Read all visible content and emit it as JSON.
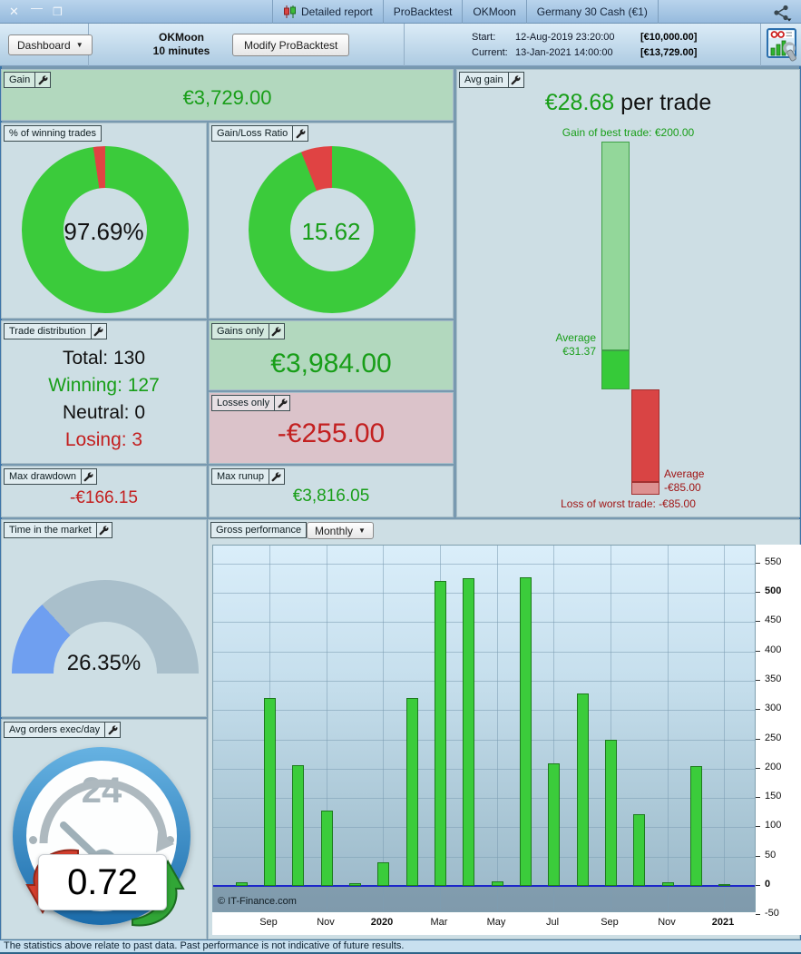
{
  "titlebar": {
    "tabs": [
      "Detailed report",
      "ProBacktest",
      "OKMoon",
      "Germany 30 Cash (€1)"
    ]
  },
  "toolbar": {
    "dashboard_label": "Dashboard",
    "strategy_name": "OKMoon",
    "strategy_timeframe": "10 minutes",
    "modify_button": "Modify ProBacktest",
    "start": {
      "label": "Start:",
      "datetime": "12-Aug-2019 23:20:00",
      "amount": "[€10,000.00]"
    },
    "current": {
      "label": "Current:",
      "datetime": "13-Jan-2021 14:00:00",
      "amount": "[€13,729.00]"
    }
  },
  "panels": {
    "gain": {
      "label": "Gain",
      "value": "€3,729.00"
    },
    "winning_trades": {
      "label": "% of winning trades",
      "value": "97.69%",
      "percent": 97.69,
      "colors": {
        "win": "#3bcb3b",
        "loss": "#e04343"
      }
    },
    "gain_loss_ratio": {
      "label": "Gain/Loss Ratio",
      "value": "15.62",
      "ratio": 15.62
    },
    "avg_gain": {
      "label": "Avg gain",
      "headline_value": "€28.68",
      "headline_suffix": " per trade",
      "best_trade_label": "Gain of best trade: €200.00",
      "avg_win_label_line1": "Average",
      "avg_win_label_line2": "€31.37",
      "avg_loss_label_line1": "Average",
      "avg_loss_label_line2": "-€85.00",
      "worst_trade_label": "Loss of worst trade: -€85.00",
      "stats": {
        "best": 200,
        "average_gain": 31.37,
        "average_loss": -85,
        "worst": -85
      }
    },
    "trade_distribution": {
      "label": "Trade distribution",
      "rows": [
        {
          "text": "Total: 130",
          "color": "k"
        },
        {
          "text": "Winning: 127",
          "color": "g"
        },
        {
          "text": "Neutral: 0",
          "color": "k"
        },
        {
          "text": "Losing: 3",
          "color": "r"
        }
      ]
    },
    "gains_only": {
      "label": "Gains only",
      "value": "€3,984.00"
    },
    "losses_only": {
      "label": "Losses only",
      "value": "-€255.00"
    },
    "max_drawdown": {
      "label": "Max drawdown",
      "value": "-€166.15"
    },
    "max_runup": {
      "label": "Max runup",
      "value": "€3,816.05"
    },
    "time_in_market": {
      "label": "Time in the market",
      "value": "26.35%",
      "percent": 26.35,
      "colors": {
        "fill": "#6f9ff0",
        "rest": "#a9bfcb"
      }
    },
    "avg_orders": {
      "label": "Avg orders exec/day",
      "value": "0.72",
      "dial_text": "24"
    },
    "gross_performance": {
      "label": "Gross performance",
      "period_selector": "Monthly"
    }
  },
  "chart_data": {
    "type": "bar",
    "title": "Gross performance (Monthly)",
    "ylabel": "",
    "xlabel": "",
    "categories": [
      "Aug 2019",
      "Sep 2019",
      "Oct 2019",
      "Nov 2019",
      "Dec 2019",
      "Jan 2020",
      "Feb 2020",
      "Mar 2020",
      "Apr 2020",
      "May 2020",
      "Jun 2020",
      "Jul 2020",
      "Aug 2020",
      "Sep 2020",
      "Oct 2020",
      "Nov 2020",
      "Dec 2020",
      "Jan 2021"
    ],
    "values": [
      6,
      320,
      206,
      129,
      5,
      41,
      321,
      520,
      525,
      8,
      526,
      209,
      328,
      249,
      122,
      6,
      205,
      2
    ],
    "x_tick_labels": [
      {
        "index": 1,
        "label": "Sep",
        "bold": false
      },
      {
        "index": 3,
        "label": "Nov",
        "bold": false
      },
      {
        "index": 5,
        "label": "2020",
        "bold": true
      },
      {
        "index": 7,
        "label": "Mar",
        "bold": false
      },
      {
        "index": 9,
        "label": "May",
        "bold": false
      },
      {
        "index": 11,
        "label": "Jul",
        "bold": false
      },
      {
        "index": 13,
        "label": "Sep",
        "bold": false
      },
      {
        "index": 15,
        "label": "Nov",
        "bold": false
      },
      {
        "index": 17,
        "label": "2021",
        "bold": true
      }
    ],
    "y_ticks": [
      -50,
      0,
      50,
      100,
      150,
      200,
      250,
      300,
      350,
      400,
      450,
      500,
      550
    ],
    "y_bold_ticks": [
      0,
      500
    ],
    "ylim": [
      -50,
      580
    ],
    "grid": true,
    "legend": false,
    "bar_color": "#3bcc3b",
    "bar_border": "#1d7a1d",
    "watermark": "© IT-Finance.com"
  },
  "status_bar": {
    "text": "The statistics above relate to past data. Past performance is not indicative of future results."
  }
}
